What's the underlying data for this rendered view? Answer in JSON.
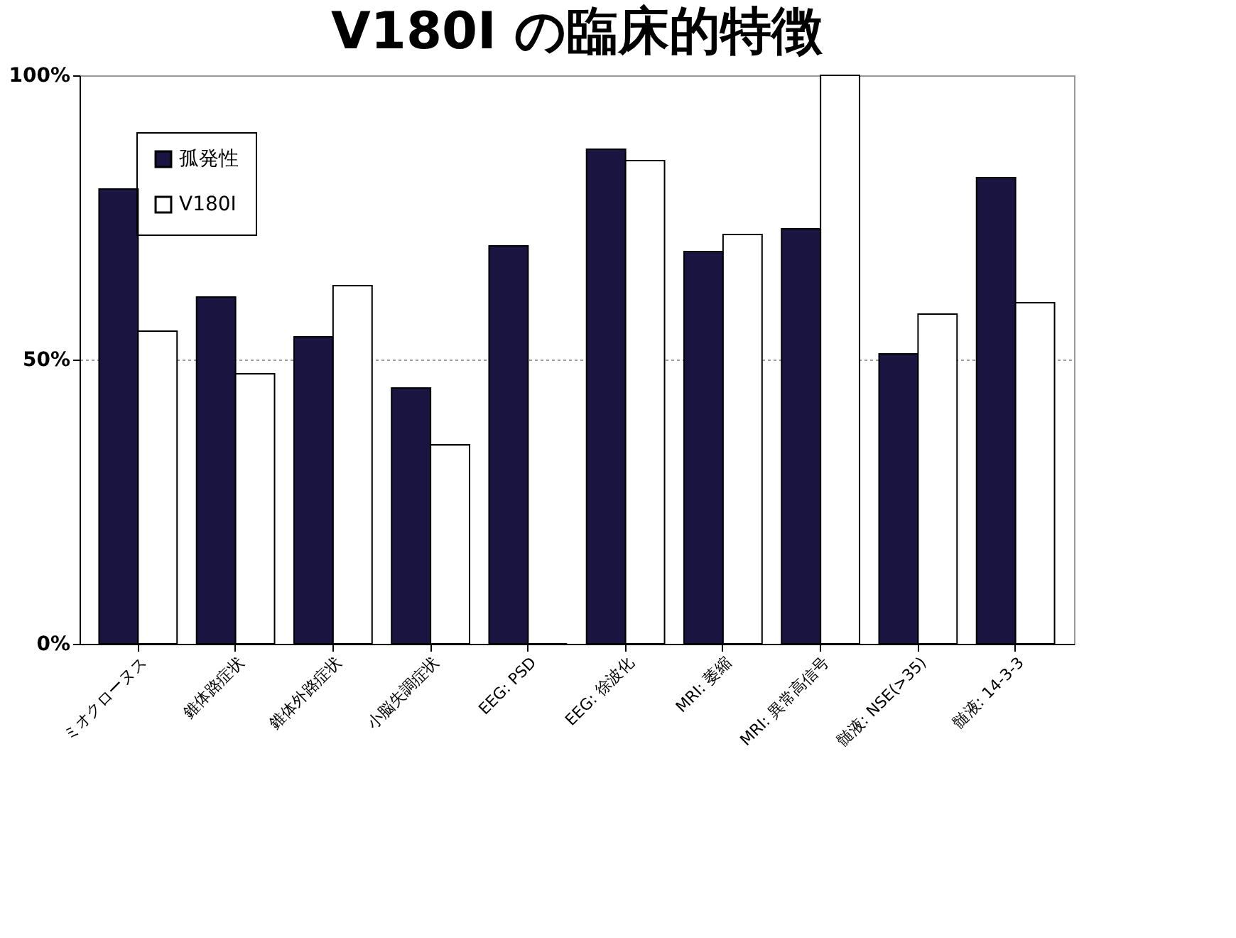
{
  "chart_data": {
    "type": "bar",
    "title": "V180I の臨床的特徴",
    "categories": [
      "ミオクローヌス",
      "錐体路症状",
      "錐体外路症状",
      "小脳失調症状",
      "EEG: PSD",
      "EEG: 徐波化",
      "MRI: 萎縮",
      "MRI: 異常高信号",
      "髄液: NSE(>35)",
      "髄液: 14-3-3"
    ],
    "series": [
      {
        "name": "孤発性",
        "color": "#1a1440",
        "values": [
          80,
          61,
          54,
          45,
          70,
          87,
          69,
          73,
          51,
          82
        ]
      },
      {
        "name": "V180I",
        "color": "#ffffff",
        "values": [
          55,
          47.5,
          63,
          35,
          0,
          85,
          72,
          100,
          58,
          60
        ]
      }
    ],
    "ylim": [
      0,
      100
    ],
    "yticks": [
      {
        "value": 0,
        "label": "0%"
      },
      {
        "value": 50,
        "label": "50%"
      },
      {
        "value": 100,
        "label": "100%"
      }
    ],
    "grid": "y",
    "legend": "top left"
  }
}
